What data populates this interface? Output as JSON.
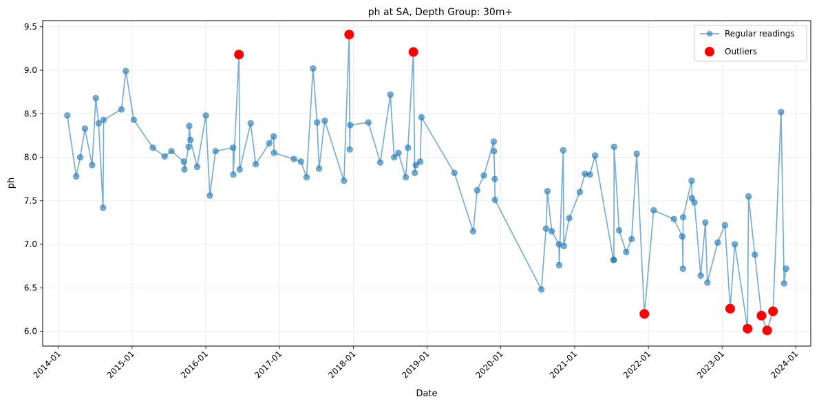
{
  "chart_data": {
    "type": "line",
    "title": "ph at SA, Depth Group: 30m+",
    "xlabel": "Date",
    "ylabel": "ph",
    "x_axis_type": "date",
    "xlim": [
      "2013-10-15",
      "2024-03-15"
    ],
    "ylim": [
      5.83,
      9.57
    ],
    "x_ticks": [
      "2014-01-01",
      "2015-01-01",
      "2016-01-01",
      "2017-01-01",
      "2018-01-01",
      "2019-01-01",
      "2020-01-01",
      "2021-01-01",
      "2022-01-01",
      "2023-01-01",
      "2024-01-01"
    ],
    "x_tick_labels": [
      "2014-01",
      "2015-01",
      "2016-01",
      "2017-01",
      "2018-01",
      "2019-01",
      "2020-01",
      "2021-01",
      "2022-01",
      "2023-01",
      "2024-01"
    ],
    "y_ticks": [
      6.0,
      6.5,
      7.0,
      7.5,
      8.0,
      8.5,
      9.0,
      9.5
    ],
    "y_tick_labels": [
      "6.0",
      "6.5",
      "7.0",
      "7.5",
      "8.0",
      "8.5",
      "9.0",
      "9.5"
    ],
    "grid": true,
    "legend_position": "top-right",
    "series": [
      {
        "name": "Regular readings",
        "style": "line-with-markers",
        "color": "#1f77b4",
        "points": [
          [
            "2014-02-14",
            8.48
          ],
          [
            "2014-03-30",
            7.78
          ],
          [
            "2014-04-19",
            8.0
          ],
          [
            "2014-05-12",
            8.33
          ],
          [
            "2014-06-17",
            7.91
          ],
          [
            "2014-07-05",
            8.68
          ],
          [
            "2014-07-19",
            8.39
          ],
          [
            "2014-08-10",
            7.42
          ],
          [
            "2014-08-13",
            8.43
          ],
          [
            "2014-11-09",
            8.55
          ],
          [
            "2014-12-01",
            8.99
          ],
          [
            "2015-01-09",
            8.43
          ],
          [
            "2015-04-14",
            8.11
          ],
          [
            "2015-06-11",
            8.01
          ],
          [
            "2015-07-15",
            8.07
          ],
          [
            "2015-09-14",
            7.95
          ],
          [
            "2015-09-17",
            7.86
          ],
          [
            "2015-10-08",
            8.12
          ],
          [
            "2015-10-11",
            8.36
          ],
          [
            "2015-10-17",
            8.2
          ],
          [
            "2015-11-19",
            7.89
          ],
          [
            "2016-01-01",
            8.48
          ],
          [
            "2016-01-21",
            7.56
          ],
          [
            "2016-02-18",
            8.07
          ],
          [
            "2016-05-15",
            8.11
          ],
          [
            "2016-05-16",
            7.8
          ],
          [
            "2016-06-13",
            9.18
          ],
          [
            "2016-06-17",
            7.86
          ],
          [
            "2016-08-10",
            8.39
          ],
          [
            "2016-09-04",
            7.92
          ],
          [
            "2016-11-10",
            8.16
          ],
          [
            "2016-12-02",
            8.24
          ],
          [
            "2016-12-04",
            8.05
          ],
          [
            "2017-03-12",
            7.98
          ],
          [
            "2017-04-16",
            7.95
          ],
          [
            "2017-05-14",
            7.77
          ],
          [
            "2017-06-15",
            9.02
          ],
          [
            "2017-07-05",
            8.4
          ],
          [
            "2017-07-15",
            7.87
          ],
          [
            "2017-08-12",
            8.42
          ],
          [
            "2017-11-15",
            7.73
          ],
          [
            "2017-12-11",
            9.41
          ],
          [
            "2017-12-14",
            8.09
          ],
          [
            "2017-12-16",
            8.37
          ],
          [
            "2018-03-16",
            8.4
          ],
          [
            "2018-05-14",
            7.94
          ],
          [
            "2018-07-03",
            8.72
          ],
          [
            "2018-07-22",
            8.0
          ],
          [
            "2018-08-12",
            8.05
          ],
          [
            "2018-09-17",
            7.77
          ],
          [
            "2018-09-28",
            8.11
          ],
          [
            "2018-10-25",
            9.21
          ],
          [
            "2018-11-01",
            7.82
          ],
          [
            "2018-11-06",
            7.91
          ],
          [
            "2018-11-28",
            7.95
          ],
          [
            "2018-12-04",
            8.46
          ],
          [
            "2019-05-16",
            7.82
          ],
          [
            "2019-08-17",
            7.15
          ],
          [
            "2019-09-06",
            7.62
          ],
          [
            "2019-10-09",
            7.79
          ],
          [
            "2019-11-27",
            8.18
          ],
          [
            "2019-11-28",
            8.07
          ],
          [
            "2019-12-02",
            7.75
          ],
          [
            "2019-12-03",
            7.51
          ],
          [
            "2020-07-20",
            6.48
          ],
          [
            "2020-08-12",
            7.18
          ],
          [
            "2020-08-19",
            7.61
          ],
          [
            "2020-09-09",
            7.15
          ],
          [
            "2020-10-15",
            7.0
          ],
          [
            "2020-10-16",
            6.76
          ],
          [
            "2020-11-05",
            8.08
          ],
          [
            "2020-11-08",
            6.98
          ],
          [
            "2020-12-05",
            7.3
          ],
          [
            "2021-01-26",
            7.6
          ],
          [
            "2021-02-21",
            7.81
          ],
          [
            "2021-03-17",
            7.8
          ],
          [
            "2021-04-12",
            8.02
          ],
          [
            "2021-07-12",
            6.82
          ],
          [
            "2021-07-14",
            6.82
          ],
          [
            "2021-07-15",
            8.12
          ],
          [
            "2021-08-09",
            7.16
          ],
          [
            "2021-09-13",
            6.91
          ],
          [
            "2021-10-10",
            7.06
          ],
          [
            "2021-11-04",
            8.04
          ],
          [
            "2021-12-12",
            6.2
          ],
          [
            "2022-01-27",
            7.39
          ],
          [
            "2022-05-07",
            7.29
          ],
          [
            "2022-06-18",
            7.09
          ],
          [
            "2022-06-21",
            6.72
          ],
          [
            "2022-06-22",
            7.31
          ],
          [
            "2022-08-03",
            7.73
          ],
          [
            "2022-08-05",
            7.53
          ],
          [
            "2022-08-17",
            7.48
          ],
          [
            "2022-09-17",
            6.64
          ],
          [
            "2022-10-10",
            7.25
          ],
          [
            "2022-10-20",
            6.56
          ],
          [
            "2022-12-10",
            7.02
          ],
          [
            "2023-01-15",
            7.22
          ],
          [
            "2023-02-10",
            6.26
          ],
          [
            "2023-03-05",
            7.0
          ],
          [
            "2023-05-07",
            6.03
          ],
          [
            "2023-05-12",
            7.55
          ],
          [
            "2023-06-12",
            6.88
          ],
          [
            "2023-07-15",
            6.18
          ],
          [
            "2023-08-12",
            6.01
          ],
          [
            "2023-09-10",
            6.23
          ],
          [
            "2023-10-20",
            8.52
          ],
          [
            "2023-11-04",
            6.55
          ],
          [
            "2023-11-14",
            6.72
          ]
        ]
      },
      {
        "name": "Outliers",
        "style": "markers",
        "color": "#ff0000",
        "points": [
          [
            "2016-06-13",
            9.18
          ],
          [
            "2017-12-11",
            9.41
          ],
          [
            "2018-10-25",
            9.21
          ],
          [
            "2021-12-12",
            6.2
          ],
          [
            "2023-02-10",
            6.26
          ],
          [
            "2023-05-07",
            6.03
          ],
          [
            "2023-07-15",
            6.18
          ],
          [
            "2023-08-12",
            6.01
          ],
          [
            "2023-09-10",
            6.23
          ]
        ]
      }
    ]
  }
}
